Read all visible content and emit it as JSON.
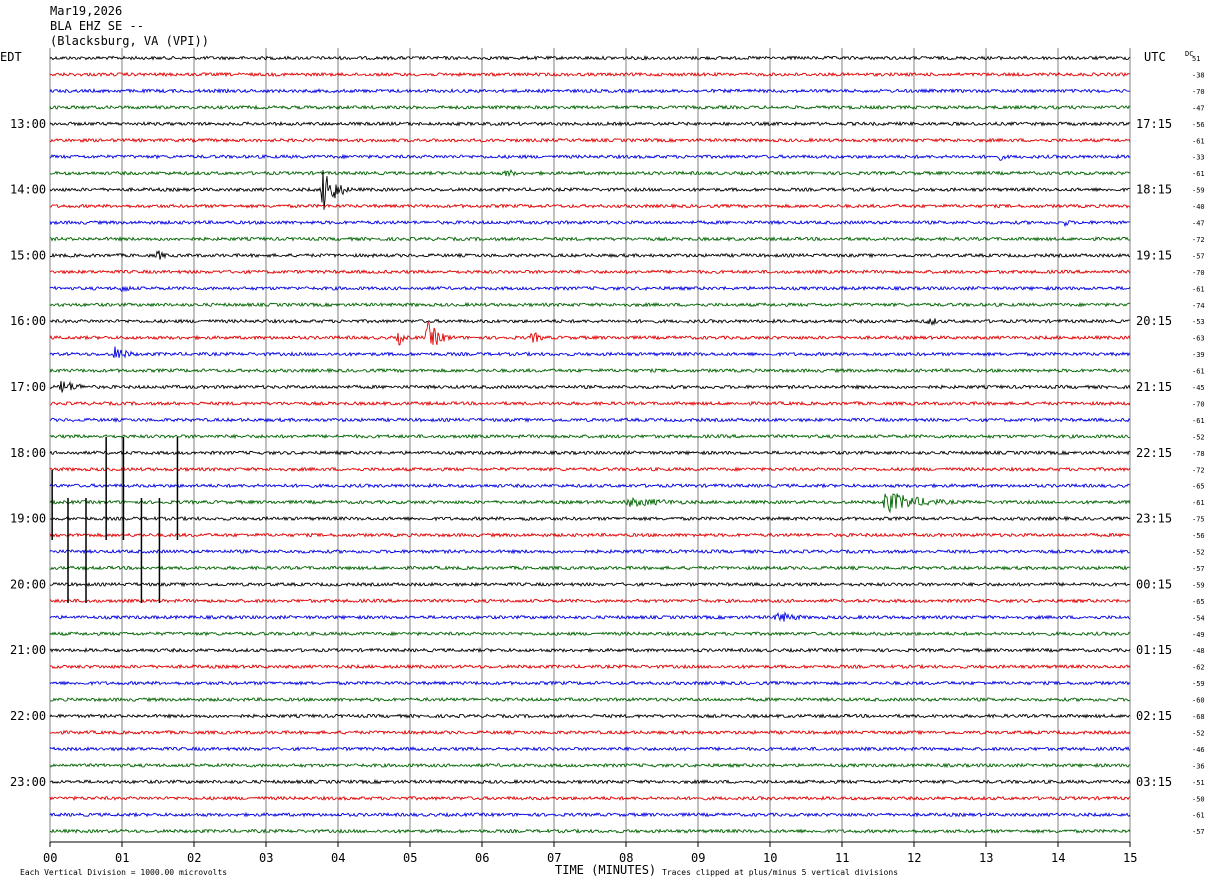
{
  "header": {
    "date": "Mar19,2026",
    "station": "BLA EHZ SE --",
    "location": "(Blacksburg, VA (VPI))"
  },
  "chart_data": {
    "type": "line",
    "left_label": "EDT",
    "right_label": "UTC",
    "dc_label": "DC",
    "xlabel": "TIME (MINUTES)",
    "x_ticks": [
      "00",
      "01",
      "02",
      "03",
      "04",
      "05",
      "06",
      "07",
      "08",
      "09",
      "10",
      "11",
      "12",
      "13",
      "14",
      "15"
    ],
    "xlim": [
      0,
      15
    ],
    "left_hour_labels": [
      "13:00",
      "14:00",
      "15:00",
      "16:00",
      "17:00",
      "18:00",
      "19:00",
      "20:00",
      "21:00",
      "22:00",
      "23:00"
    ],
    "right_hour_labels": [
      "17:15",
      "18:15",
      "19:15",
      "20:15",
      "21:15",
      "22:15",
      "23:15",
      "00:15",
      "01:15",
      "02:15",
      "03:15"
    ],
    "dc_offsets": [
      51,
      -38,
      -70,
      -47,
      -56,
      -61,
      -33,
      -61,
      -59,
      -40,
      -47,
      -72,
      -57,
      -70,
      -61,
      -74,
      -53,
      -63,
      -39,
      -61,
      -45,
      -70,
      -61,
      -52,
      -78,
      -72,
      -65,
      -61,
      -75,
      -56,
      -52,
      -57,
      -59,
      -65,
      -54,
      -49,
      -48,
      -62,
      -59,
      -60,
      -68,
      -52,
      -46,
      -36,
      -51,
      -50,
      -61,
      -57
    ],
    "trace_colors": [
      "#000000",
      "#e00000",
      "#0000e0",
      "#006400"
    ],
    "events": [
      {
        "trace": 8,
        "minute": 3.8,
        "amplitude": 28,
        "duration": 0.45
      },
      {
        "trace": 17,
        "minute": 5.25,
        "amplitude": 16,
        "duration": 0.5
      },
      {
        "trace": 17,
        "minute": 4.85,
        "amplitude": 8,
        "duration": 0.25
      },
      {
        "trace": 17,
        "minute": 6.7,
        "amplitude": 7,
        "duration": 0.4
      },
      {
        "trace": 18,
        "minute": 0.9,
        "amplitude": 8,
        "duration": 0.6
      },
      {
        "trace": 20,
        "minute": 0.15,
        "amplitude": 8,
        "duration": 0.8
      },
      {
        "trace": 27,
        "minute": 11.6,
        "amplitude": 12,
        "duration": 1.5
      },
      {
        "trace": 27,
        "minute": 8.0,
        "amplitude": 5,
        "duration": 2.5
      },
      {
        "trace": 34,
        "minute": 10.1,
        "amplitude": 7,
        "duration": 0.8
      },
      {
        "trace": 16,
        "minute": 12.2,
        "amplitude": 6,
        "duration": 0.4
      },
      {
        "trace": 7,
        "minute": 6.35,
        "amplitude": 6,
        "duration": 0.3
      },
      {
        "trace": 12,
        "minute": 1.5,
        "amplitude": 6,
        "duration": 0.3
      },
      {
        "trace": 14,
        "minute": 1.0,
        "amplitude": 5,
        "duration": 0.4
      },
      {
        "trace": 28,
        "minute": 6.6,
        "amplitude": 4,
        "duration": 0.3
      },
      {
        "trace": 10,
        "minute": 14.1,
        "amplitude": 4,
        "duration": 0.3
      },
      {
        "trace": 6,
        "minute": 13.2,
        "amplitude": 4,
        "duration": 0.3
      }
    ],
    "spikes": [
      {
        "minute": 0.25,
        "y_top": 498,
        "y_bottom": 603
      },
      {
        "minute": 0.5,
        "y_top": 498,
        "y_bottom": 603
      },
      {
        "minute": 0.78,
        "y_top": 437,
        "y_bottom": 540
      },
      {
        "minute": 1.02,
        "y_top": 437,
        "y_bottom": 540
      },
      {
        "minute": 1.27,
        "y_top": 498,
        "y_bottom": 603
      },
      {
        "minute": 1.52,
        "y_top": 498,
        "y_bottom": 603
      },
      {
        "minute": 1.77,
        "y_top": 437,
        "y_bottom": 540
      },
      {
        "minute": 0.03,
        "y_top": 470,
        "y_bottom": 540
      }
    ],
    "footer_left": "Each Vertical Division = 1000.00 microvolts",
    "footer_right": "Traces clipped at plus/minus 5 vertical divisions"
  }
}
